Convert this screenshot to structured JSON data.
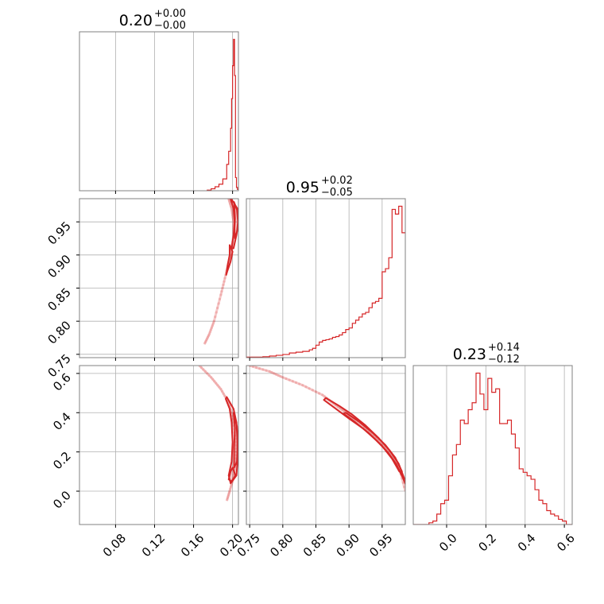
{
  "chart_data": {
    "type": "corner",
    "color": "#d62728",
    "grid": true,
    "parameters": [
      {
        "title": {
          "median": "0.20",
          "plus": "+0.00",
          "minus": "−0.00"
        },
        "range": [
          0.043,
          0.206
        ],
        "ticks": [
          0.08,
          0.12,
          0.16,
          0.2
        ],
        "tick_labels": [
          "0.08",
          "0.12",
          "0.16",
          "0.20"
        ]
      },
      {
        "title": {
          "median": "0.95",
          "plus": "+0.02",
          "minus": "−0.05"
        },
        "range": [
          0.745,
          0.985
        ],
        "ticks": [
          0.75,
          0.8,
          0.85,
          0.9,
          0.95
        ],
        "tick_labels": [
          "0.75",
          "0.80",
          "0.85",
          "0.90",
          "0.95"
        ]
      },
      {
        "title": {
          "median": "0.23",
          "plus": "+0.14",
          "minus": "−0.12"
        },
        "range": [
          -0.17,
          0.64
        ],
        "ticks": [
          0.0,
          0.2,
          0.4,
          0.6
        ],
        "tick_labels": [
          "0.0",
          "0.2",
          "0.4",
          "0.6"
        ]
      }
    ],
    "histograms": [
      {
        "param": 0,
        "bin_edges": [
          0.174,
          0.178,
          0.182,
          0.186,
          0.19,
          0.194,
          0.196,
          0.198,
          0.199,
          0.2,
          0.201,
          0.202,
          0.203,
          0.204,
          0.205,
          0.206
        ],
        "counts": [
          1,
          3,
          6,
          10,
          18,
          40,
          60,
          95,
          140,
          190,
          230,
          175,
          20,
          5,
          2
        ]
      },
      {
        "param": 1,
        "bin_edges": [
          0.745,
          0.77,
          0.78,
          0.79,
          0.8,
          0.81,
          0.82,
          0.83,
          0.84,
          0.845,
          0.85,
          0.855,
          0.86,
          0.865,
          0.87,
          0.875,
          0.88,
          0.885,
          0.89,
          0.895,
          0.9,
          0.905,
          0.91,
          0.915,
          0.92,
          0.925,
          0.93,
          0.935,
          0.94,
          0.945,
          0.95,
          0.955,
          0.96,
          0.965,
          0.97,
          0.975,
          0.98,
          0.985
        ],
        "counts": [
          0.3,
          0.6,
          1,
          1.5,
          2,
          3,
          3.5,
          4,
          5,
          6,
          8,
          10,
          11,
          11.5,
          12,
          13,
          13.5,
          14.5,
          16,
          18,
          19,
          22,
          24,
          26,
          28,
          29,
          32,
          35,
          36,
          38,
          55,
          57,
          64,
          95,
          92,
          97,
          80
        ]
      },
      {
        "param": 2,
        "bin_edges": [
          -0.17,
          -0.09,
          -0.07,
          -0.05,
          -0.03,
          -0.01,
          0.01,
          0.03,
          0.05,
          0.07,
          0.09,
          0.11,
          0.13,
          0.15,
          0.17,
          0.19,
          0.21,
          0.23,
          0.25,
          0.27,
          0.29,
          0.31,
          0.33,
          0.35,
          0.37,
          0.39,
          0.41,
          0.43,
          0.45,
          0.47,
          0.49,
          0.51,
          0.53,
          0.55,
          0.57,
          0.59,
          0.61,
          0.64
        ],
        "counts": [
          0,
          1,
          2,
          6,
          12,
          14,
          28,
          40,
          46,
          60,
          58,
          66,
          70,
          87,
          75,
          66,
          84,
          76,
          78,
          58,
          58,
          60,
          52,
          44,
          32,
          30,
          28,
          26,
          20,
          14,
          12,
          8,
          6,
          5,
          3,
          2,
          0
        ]
      }
    ],
    "scatter_panels": [
      {
        "x_param": 0,
        "y_param": 1,
        "sample_curve": [
          [
            0.196,
            0.985
          ],
          [
            0.199,
            0.97
          ],
          [
            0.201,
            0.95
          ],
          [
            0.201,
            0.93
          ],
          [
            0.199,
            0.91
          ],
          [
            0.196,
            0.89
          ],
          [
            0.193,
            0.87
          ],
          [
            0.188,
            0.84
          ],
          [
            0.181,
            0.8
          ],
          [
            0.176,
            0.78
          ],
          [
            0.171,
            0.765
          ]
        ],
        "contours": [
          [
            [
              0.199,
              0.984
            ],
            [
              0.205,
              0.97
            ],
            [
              0.206,
              0.95
            ],
            [
              0.204,
              0.93
            ],
            [
              0.201,
              0.91
            ],
            [
              0.199,
              0.91
            ],
            [
              0.201,
              0.93
            ],
            [
              0.202,
              0.95
            ],
            [
              0.201,
              0.97
            ],
            [
              0.198,
              0.984
            ]
          ],
          [
            [
              0.2015,
              0.98
            ],
            [
              0.2045,
              0.968
            ],
            [
              0.2055,
              0.95
            ],
            [
              0.2045,
              0.935
            ],
            [
              0.2025,
              0.925
            ],
            [
              0.202,
              0.94
            ],
            [
              0.2025,
              0.955
            ],
            [
              0.202,
              0.97
            ]
          ],
          [
            [
              0.197,
              0.915
            ],
            [
              0.2,
              0.905
            ],
            [
              0.198,
              0.89
            ],
            [
              0.1945,
              0.875
            ],
            [
              0.1935,
              0.87
            ],
            [
              0.195,
              0.885
            ],
            [
              0.197,
              0.9
            ]
          ]
        ]
      },
      {
        "x_param": 0,
        "y_param": 2,
        "sample_curve": [
          [
            0.166,
            0.64
          ],
          [
            0.178,
            0.58
          ],
          [
            0.188,
            0.52
          ],
          [
            0.196,
            0.45
          ],
          [
            0.201,
            0.35
          ],
          [
            0.203,
            0.25
          ],
          [
            0.203,
            0.15
          ],
          [
            0.201,
            0.07
          ],
          [
            0.197,
            0.0
          ],
          [
            0.194,
            -0.05
          ]
        ],
        "contours": [
          [
            [
              0.194,
              0.48
            ],
            [
              0.201,
              0.42
            ],
            [
              0.204,
              0.35
            ],
            [
              0.205,
              0.25
            ],
            [
              0.205,
              0.15
            ],
            [
              0.204,
              0.08
            ],
            [
              0.198,
              0.04
            ],
            [
              0.196,
              0.08
            ],
            [
              0.199,
              0.15
            ],
            [
              0.2,
              0.25
            ],
            [
              0.199,
              0.35
            ],
            [
              0.197,
              0.42
            ],
            [
              0.193,
              0.47
            ]
          ],
          [
            [
              0.201,
              0.4
            ],
            [
              0.2045,
              0.33
            ],
            [
              0.2055,
              0.24
            ],
            [
              0.2045,
              0.15
            ],
            [
              0.2015,
              0.12
            ],
            [
              0.2015,
              0.22
            ],
            [
              0.2025,
              0.32
            ]
          ],
          [
            [
              0.2,
              0.12
            ],
            [
              0.203,
              0.08
            ],
            [
              0.199,
              0.05
            ],
            [
              0.196,
              0.06
            ],
            [
              0.198,
              0.1
            ]
          ]
        ]
      },
      {
        "x_param": 1,
        "y_param": 2,
        "sample_curve": [
          [
            0.75,
            0.64
          ],
          [
            0.78,
            0.61
          ],
          [
            0.8,
            0.58
          ],
          [
            0.83,
            0.54
          ],
          [
            0.86,
            0.49
          ],
          [
            0.88,
            0.44
          ],
          [
            0.9,
            0.39
          ],
          [
            0.92,
            0.34
          ],
          [
            0.94,
            0.27
          ],
          [
            0.96,
            0.2
          ],
          [
            0.975,
            0.13
          ],
          [
            0.985,
            0.0
          ]
        ],
        "contours": [
          [
            [
              0.865,
              0.475
            ],
            [
              0.885,
              0.435
            ],
            [
              0.905,
              0.39
            ],
            [
              0.925,
              0.335
            ],
            [
              0.945,
              0.27
            ],
            [
              0.962,
              0.205
            ],
            [
              0.975,
              0.14
            ],
            [
              0.984,
              0.06
            ],
            [
              0.986,
              0.03
            ],
            [
              0.981,
              0.07
            ],
            [
              0.971,
              0.14
            ],
            [
              0.958,
              0.2
            ],
            [
              0.941,
              0.26
            ],
            [
              0.921,
              0.32
            ],
            [
              0.9,
              0.37
            ],
            [
              0.88,
              0.42
            ],
            [
              0.862,
              0.465
            ]
          ],
          [
            [
              0.895,
              0.4
            ],
            [
              0.915,
              0.355
            ],
            [
              0.935,
              0.3
            ],
            [
              0.955,
              0.235
            ],
            [
              0.97,
              0.17
            ],
            [
              0.98,
              0.1
            ],
            [
              0.976,
              0.1
            ],
            [
              0.965,
              0.165
            ],
            [
              0.95,
              0.23
            ],
            [
              0.93,
              0.295
            ],
            [
              0.91,
              0.35
            ],
            [
              0.892,
              0.395
            ]
          ]
        ]
      }
    ]
  }
}
